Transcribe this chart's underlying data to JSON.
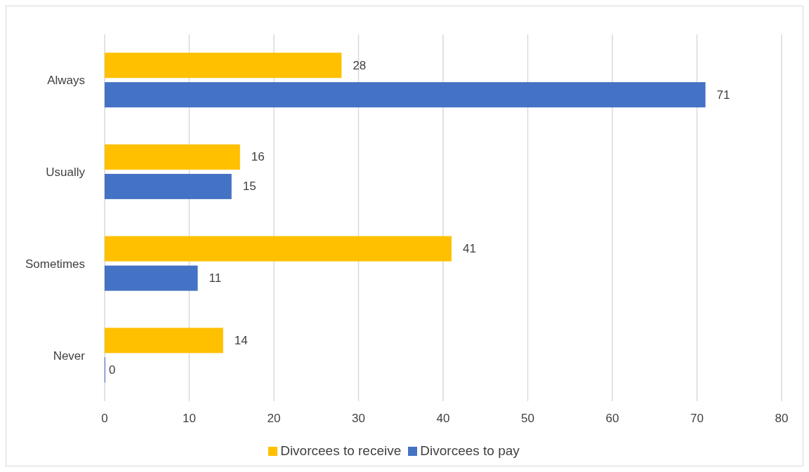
{
  "chart_data": {
    "type": "bar",
    "orientation": "horizontal",
    "categories": [
      "Always",
      "Usually",
      "Sometimes",
      "Never"
    ],
    "series": [
      {
        "name": "Divorcees to receive",
        "color": "#ffc000",
        "values": [
          28,
          16,
          41,
          14
        ]
      },
      {
        "name": "Divorcees to pay",
        "color": "#4472c4",
        "values": [
          71,
          15,
          11,
          0
        ]
      }
    ],
    "xlim": [
      0,
      80
    ],
    "xticks": [
      0,
      10,
      20,
      30,
      40,
      50,
      60,
      70,
      80
    ],
    "grid": "x",
    "legend": "bottom",
    "data_labels": true
  }
}
